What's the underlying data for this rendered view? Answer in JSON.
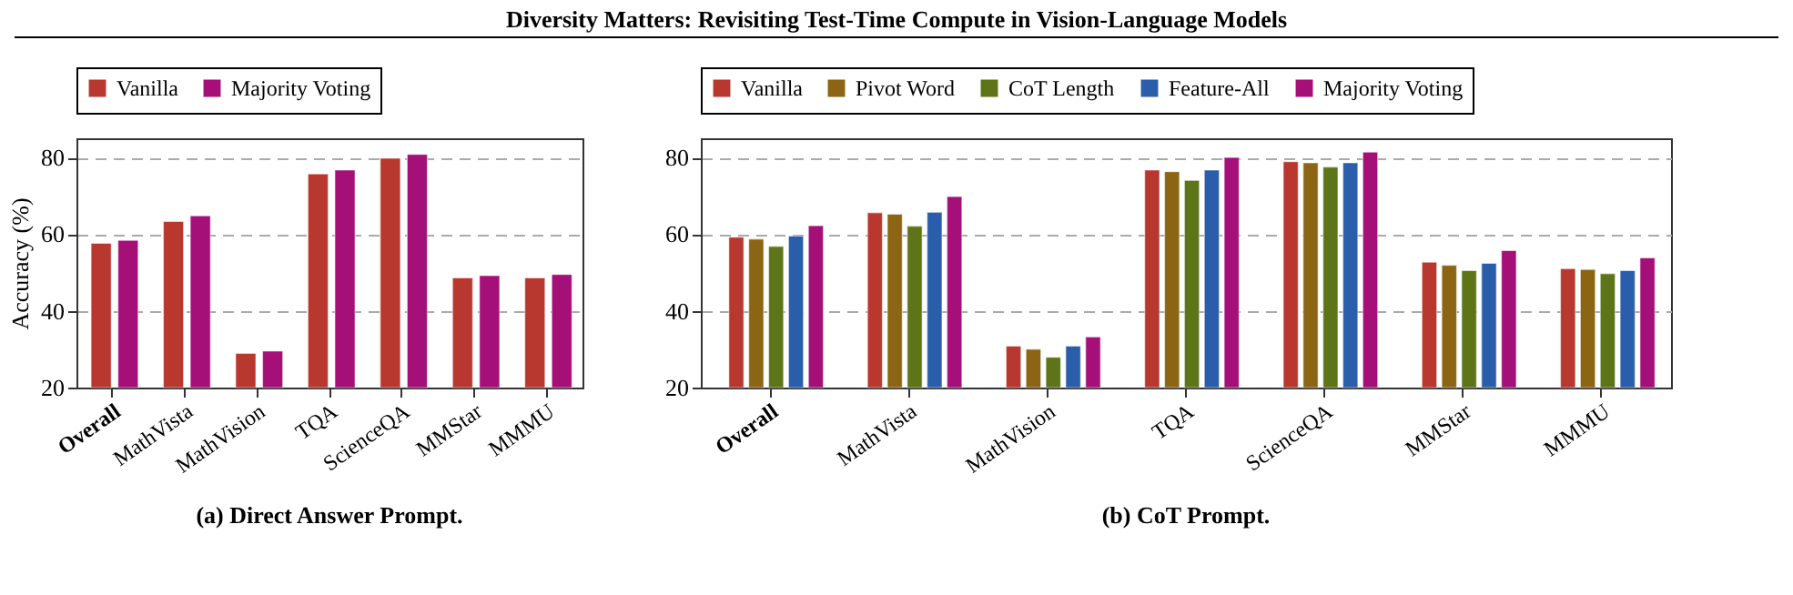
{
  "chart_data": [
    {
      "type": "bar",
      "title": "(a) Direct Answer Prompt.",
      "annotations": [
        "Diversity Matters: Revisiting Test-Time Compute in Vision-Language Models"
      ],
      "ylabel": "Accuracy (%)",
      "categories": [
        "Overall",
        "MathVista",
        "MathVision",
        "TQA",
        "ScienceQA",
        "MMStar",
        "MMMU"
      ],
      "series": [
        {
          "name": "Vanilla",
          "color": "#b8372f",
          "values": [
            57.6,
            63.3,
            28.9,
            75.7,
            79.8,
            48.6,
            48.6
          ]
        },
        {
          "name": "Majority Voting",
          "color": "#a50f78",
          "values": [
            58.4,
            64.8,
            29.5,
            76.7,
            80.8,
            49.2,
            49.5
          ]
        }
      ],
      "ylim": [
        20,
        85
      ],
      "yticks": [
        20,
        40,
        60,
        80
      ],
      "grid": "y",
      "legend": "top"
    },
    {
      "type": "bar",
      "title": "(b) CoT Prompt.",
      "categories": [
        "Overall",
        "MathVista",
        "MathVision",
        "TQA",
        "ScienceQA",
        "MMStar",
        "MMMU"
      ],
      "series": [
        {
          "name": "Vanilla",
          "color": "#b8372f",
          "values": [
            59.2,
            65.6,
            30.8,
            76.7,
            78.9,
            52.7,
            51.0
          ]
        },
        {
          "name": "Pivot Word",
          "color": "#8b6414",
          "values": [
            58.7,
            65.2,
            30.0,
            76.3,
            78.6,
            51.9,
            50.8
          ]
        },
        {
          "name": "CoT Length",
          "color": "#5e7418",
          "values": [
            56.8,
            62.1,
            27.9,
            74.0,
            77.5,
            50.5,
            49.7
          ]
        },
        {
          "name": "Feature-All",
          "color": "#2a5daa",
          "values": [
            59.5,
            65.7,
            30.8,
            76.7,
            78.6,
            52.4,
            50.5
          ]
        },
        {
          "name": "Majority Voting",
          "color": "#a50f78",
          "values": [
            62.2,
            69.8,
            33.2,
            80.0,
            81.4,
            55.7,
            53.8
          ]
        }
      ],
      "ylim": [
        20,
        85
      ],
      "yticks": [
        20,
        40,
        60,
        80
      ],
      "grid": "y",
      "legend": "top"
    }
  ]
}
